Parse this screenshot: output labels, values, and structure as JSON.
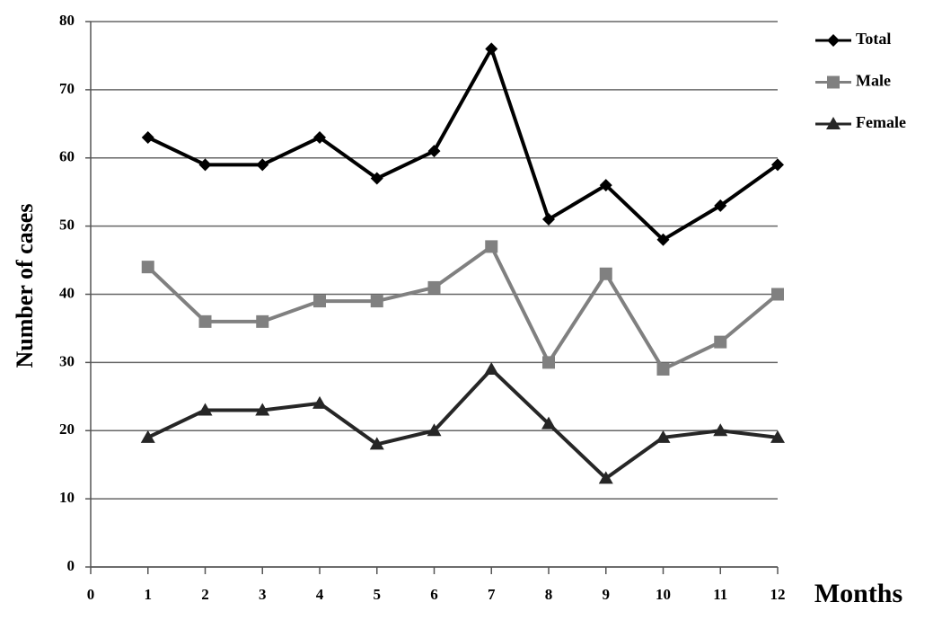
{
  "chart_data": {
    "type": "line",
    "x_label": "Months",
    "y_label": "Number of cases",
    "x": [
      1,
      2,
      3,
      4,
      5,
      6,
      7,
      8,
      9,
      10,
      11,
      12
    ],
    "series": [
      {
        "name": "Total",
        "color": "#000000",
        "marker": "diamond",
        "values": [
          63,
          59,
          59,
          63,
          57,
          61,
          76,
          51,
          56,
          48,
          53,
          59
        ]
      },
      {
        "name": "Male",
        "color": "#808080",
        "marker": "square",
        "values": [
          44,
          36,
          36,
          39,
          39,
          41,
          47,
          30,
          43,
          29,
          33,
          40
        ]
      },
      {
        "name": "Female",
        "color": "#262626",
        "marker": "triangle",
        "values": [
          19,
          23,
          23,
          24,
          18,
          20,
          29,
          21,
          13,
          19,
          20,
          19
        ]
      }
    ],
    "xlim": [
      0,
      12
    ],
    "xticks": [
      0,
      1,
      2,
      3,
      4,
      5,
      6,
      7,
      8,
      9,
      10,
      11,
      12
    ],
    "ylim": [
      0,
      80
    ],
    "yticks": [
      0,
      10,
      20,
      30,
      40,
      50,
      60,
      70,
      80
    ],
    "grid": true
  }
}
